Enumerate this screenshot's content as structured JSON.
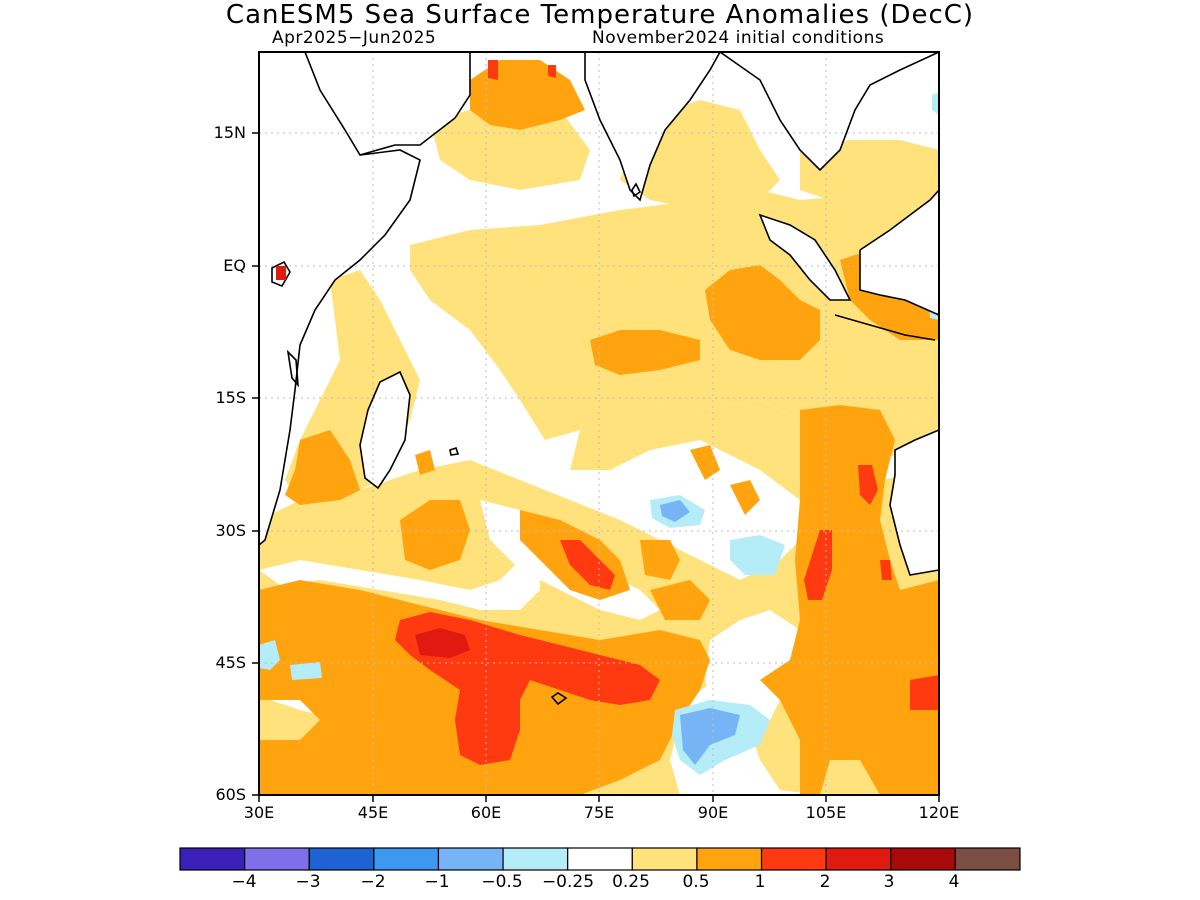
{
  "title": "CanESM5 Sea Surface Temperature Anomalies (DecC)",
  "subtitle_left": "Apr2025−Jun2025",
  "subtitle_right": "November2024 initial conditions",
  "map": {
    "lon_range": [
      30,
      120
    ],
    "lat_range": [
      -60,
      24
    ],
    "lat_labels": [
      "15N",
      "EQ",
      "15S",
      "30S",
      "45S",
      "60S"
    ],
    "lon_labels": [
      "30E",
      "45E",
      "60E",
      "75E",
      "90E",
      "105E",
      "120E"
    ]
  },
  "colorbar": {
    "colors": [
      "#3a20b8",
      "#7f6fe8",
      "#1f62d4",
      "#3d98f2",
      "#76b4f5",
      "#b4ecf8",
      "#ffffff",
      "#ffe27c",
      "#ffa30f",
      "#ff3a10",
      "#e01a10",
      "#a80a0a",
      "#7a4e42"
    ],
    "labels": [
      "−4",
      "−3",
      "−2",
      "−1",
      "−0.5",
      "−0.25",
      "0.25",
      "0.5",
      "1",
      "2",
      "3",
      "4"
    ]
  }
}
